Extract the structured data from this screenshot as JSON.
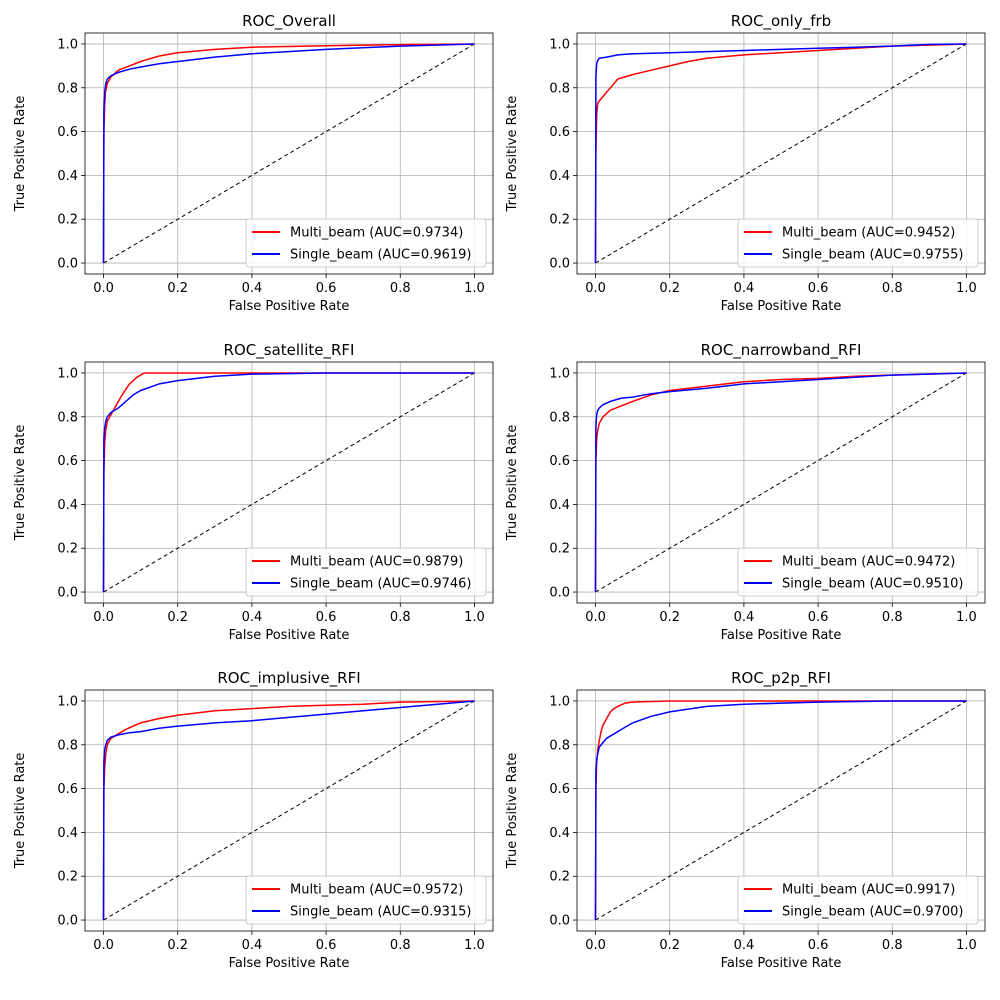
{
  "colors": {
    "Multi_beam": "#ff0000",
    "Single_beam": "#0000ff",
    "diagonal": "#000000"
  },
  "chart_data": [
    {
      "type": "line",
      "title": "ROC_Overall",
      "xlabel": "False Positive Rate",
      "ylabel": "True Positive Rate",
      "xlim": [
        -0.05,
        1.05
      ],
      "ylim": [
        -0.05,
        1.05
      ],
      "xticks": [
        "0.0",
        "0.2",
        "0.4",
        "0.6",
        "0.8",
        "1.0"
      ],
      "yticks": [
        "0.0",
        "0.2",
        "0.4",
        "0.6",
        "0.8",
        "1.0"
      ],
      "grid": true,
      "legend_position": "lower-right",
      "series": [
        {
          "name": "Multi_beam",
          "legend": "Multi_beam (AUC=0.9734)",
          "x": [
            0,
            0.001,
            0.003,
            0.005,
            0.01,
            0.02,
            0.04,
            0.07,
            0.1,
            0.15,
            0.2,
            0.3,
            0.4,
            0.6,
            0.8,
            1.0
          ],
          "y": [
            0,
            0.6,
            0.72,
            0.78,
            0.82,
            0.85,
            0.88,
            0.9,
            0.92,
            0.945,
            0.96,
            0.975,
            0.985,
            0.992,
            0.997,
            1.0
          ]
        },
        {
          "name": "Single_beam",
          "legend": "Single_beam (AUC=0.9619)",
          "x": [
            0,
            0.001,
            0.003,
            0.006,
            0.01,
            0.02,
            0.04,
            0.07,
            0.1,
            0.15,
            0.2,
            0.3,
            0.4,
            0.6,
            0.8,
            1.0
          ],
          "y": [
            0,
            0.7,
            0.78,
            0.82,
            0.84,
            0.855,
            0.87,
            0.885,
            0.895,
            0.91,
            0.92,
            0.94,
            0.955,
            0.975,
            0.99,
            1.0
          ]
        }
      ]
    },
    {
      "type": "line",
      "title": "ROC_only_frb",
      "xlabel": "False Positive Rate",
      "ylabel": "True Positive Rate",
      "xlim": [
        -0.05,
        1.05
      ],
      "ylim": [
        -0.05,
        1.05
      ],
      "xticks": [
        "0.0",
        "0.2",
        "0.4",
        "0.6",
        "0.8",
        "1.0"
      ],
      "yticks": [
        "0.0",
        "0.2",
        "0.4",
        "0.6",
        "0.8",
        "1.0"
      ],
      "grid": true,
      "legend_position": "lower-right",
      "series": [
        {
          "name": "Multi_beam",
          "legend": "Multi_beam (AUC=0.9452)",
          "x": [
            0,
            0.001,
            0.003,
            0.006,
            0.01,
            0.02,
            0.04,
            0.06,
            0.1,
            0.15,
            0.2,
            0.25,
            0.3,
            0.4,
            0.5,
            0.6,
            0.7,
            0.8,
            0.9,
            1.0
          ],
          "y": [
            0,
            0.5,
            0.68,
            0.73,
            0.74,
            0.76,
            0.8,
            0.84,
            0.86,
            0.88,
            0.9,
            0.92,
            0.935,
            0.95,
            0.96,
            0.97,
            0.98,
            0.99,
            0.995,
            1.0
          ]
        },
        {
          "name": "Single_beam",
          "legend": "Single_beam (AUC=0.9755)",
          "x": [
            0,
            0.001,
            0.003,
            0.006,
            0.01,
            0.03,
            0.06,
            0.1,
            0.2,
            0.3,
            0.4,
            0.5,
            0.6,
            0.7,
            0.8,
            0.9,
            1.0
          ],
          "y": [
            0,
            0.85,
            0.91,
            0.925,
            0.935,
            0.94,
            0.95,
            0.955,
            0.96,
            0.965,
            0.97,
            0.975,
            0.98,
            0.985,
            0.99,
            0.998,
            1.0
          ]
        }
      ]
    },
    {
      "type": "line",
      "title": "ROC_satellite_RFI",
      "xlabel": "False Positive Rate",
      "ylabel": "True Positive Rate",
      "xlim": [
        -0.05,
        1.05
      ],
      "ylim": [
        -0.05,
        1.05
      ],
      "xticks": [
        "0.0",
        "0.2",
        "0.4",
        "0.6",
        "0.8",
        "1.0"
      ],
      "yticks": [
        "0.0",
        "0.2",
        "0.4",
        "0.6",
        "0.8",
        "1.0"
      ],
      "grid": true,
      "legend_position": "lower-right",
      "series": [
        {
          "name": "Multi_beam",
          "legend": "Multi_beam (AUC=0.9879)",
          "x": [
            0,
            0.001,
            0.003,
            0.006,
            0.01,
            0.02,
            0.03,
            0.04,
            0.05,
            0.07,
            0.09,
            0.11,
            0.2,
            0.4,
            0.6,
            0.8,
            1.0
          ],
          "y": [
            0,
            0.55,
            0.68,
            0.74,
            0.78,
            0.81,
            0.84,
            0.87,
            0.9,
            0.95,
            0.98,
            1.0,
            1.0,
            1.0,
            1.0,
            1.0,
            1.0
          ]
        },
        {
          "name": "Single_beam",
          "legend": "Single_beam (AUC=0.9746)",
          "x": [
            0,
            0.001,
            0.003,
            0.006,
            0.01,
            0.02,
            0.04,
            0.06,
            0.08,
            0.1,
            0.15,
            0.2,
            0.3,
            0.4,
            0.6,
            0.8,
            1.0
          ],
          "y": [
            0,
            0.7,
            0.75,
            0.78,
            0.8,
            0.82,
            0.84,
            0.87,
            0.9,
            0.92,
            0.95,
            0.965,
            0.985,
            0.995,
            1.0,
            1.0,
            1.0
          ]
        }
      ]
    },
    {
      "type": "line",
      "title": "ROC_narrowband_RFI",
      "xlabel": "False Positive Rate",
      "ylabel": "True Positive Rate",
      "xlim": [
        -0.05,
        1.05
      ],
      "ylim": [
        -0.05,
        1.05
      ],
      "xticks": [
        "0.0",
        "0.2",
        "0.4",
        "0.6",
        "0.8",
        "1.0"
      ],
      "yticks": [
        "0.0",
        "0.2",
        "0.4",
        "0.6",
        "0.8",
        "1.0"
      ],
      "grid": true,
      "legend_position": "lower-right",
      "series": [
        {
          "name": "Multi_beam",
          "legend": "Multi_beam (AUC=0.9472)",
          "x": [
            0,
            0.001,
            0.003,
            0.006,
            0.01,
            0.02,
            0.04,
            0.07,
            0.1,
            0.15,
            0.2,
            0.3,
            0.4,
            0.5,
            0.6,
            0.7,
            0.8,
            1.0
          ],
          "y": [
            0,
            0.6,
            0.7,
            0.74,
            0.77,
            0.8,
            0.83,
            0.85,
            0.87,
            0.9,
            0.92,
            0.94,
            0.96,
            0.97,
            0.975,
            0.985,
            0.99,
            1.0
          ]
        },
        {
          "name": "Single_beam",
          "legend": "Single_beam (AUC=0.9510)",
          "x": [
            0,
            0.001,
            0.003,
            0.006,
            0.01,
            0.02,
            0.04,
            0.07,
            0.1,
            0.15,
            0.2,
            0.3,
            0.4,
            0.5,
            0.6,
            0.7,
            0.8,
            1.0
          ],
          "y": [
            0,
            0.76,
            0.81,
            0.83,
            0.84,
            0.855,
            0.87,
            0.885,
            0.89,
            0.905,
            0.915,
            0.93,
            0.95,
            0.96,
            0.97,
            0.98,
            0.99,
            1.0
          ]
        }
      ]
    },
    {
      "type": "line",
      "title": "ROC_implusive_RFI",
      "xlabel": "False Positive Rate",
      "ylabel": "True Positive Rate",
      "xlim": [
        -0.05,
        1.05
      ],
      "ylim": [
        -0.05,
        1.05
      ],
      "xticks": [
        "0.0",
        "0.2",
        "0.4",
        "0.6",
        "0.8",
        "1.0"
      ],
      "yticks": [
        "0.0",
        "0.2",
        "0.4",
        "0.6",
        "0.8",
        "1.0"
      ],
      "grid": true,
      "legend_position": "lower-right",
      "series": [
        {
          "name": "Multi_beam",
          "legend": "Multi_beam (AUC=0.9572)",
          "x": [
            0,
            0.001,
            0.003,
            0.006,
            0.01,
            0.02,
            0.04,
            0.06,
            0.08,
            0.1,
            0.15,
            0.2,
            0.3,
            0.4,
            0.5,
            0.6,
            0.7,
            0.8,
            1.0
          ],
          "y": [
            0,
            0.6,
            0.7,
            0.76,
            0.8,
            0.83,
            0.85,
            0.87,
            0.885,
            0.9,
            0.92,
            0.935,
            0.955,
            0.965,
            0.975,
            0.98,
            0.985,
            0.995,
            1.0
          ]
        },
        {
          "name": "Single_beam",
          "legend": "Single_beam (AUC=0.9315)",
          "x": [
            0,
            0.001,
            0.003,
            0.006,
            0.01,
            0.02,
            0.04,
            0.07,
            0.1,
            0.15,
            0.2,
            0.3,
            0.4,
            0.5,
            0.6,
            0.7,
            0.8,
            0.9,
            1.0
          ],
          "y": [
            0,
            0.72,
            0.78,
            0.8,
            0.82,
            0.835,
            0.845,
            0.855,
            0.86,
            0.875,
            0.885,
            0.9,
            0.91,
            0.925,
            0.94,
            0.955,
            0.97,
            0.985,
            1.0
          ]
        }
      ]
    },
    {
      "type": "line",
      "title": "ROC_p2p_RFI",
      "xlabel": "False Positive Rate",
      "ylabel": "True Positive Rate",
      "xlim": [
        -0.05,
        1.05
      ],
      "ylim": [
        -0.05,
        1.05
      ],
      "xticks": [
        "0.0",
        "0.2",
        "0.4",
        "0.6",
        "0.8",
        "1.0"
      ],
      "yticks": [
        "0.0",
        "0.2",
        "0.4",
        "0.6",
        "0.8",
        "1.0"
      ],
      "grid": true,
      "legend_position": "lower-right",
      "series": [
        {
          "name": "Multi_beam",
          "legend": "Multi_beam (AUC=0.9917)",
          "x": [
            0,
            0.001,
            0.003,
            0.006,
            0.01,
            0.015,
            0.02,
            0.03,
            0.04,
            0.05,
            0.06,
            0.08,
            0.1,
            0.2,
            0.4,
            0.6,
            0.8,
            1.0
          ],
          "y": [
            0,
            0.6,
            0.72,
            0.78,
            0.82,
            0.86,
            0.89,
            0.92,
            0.95,
            0.965,
            0.975,
            0.99,
            0.995,
            1.0,
            1.0,
            1.0,
            1.0,
            1.0
          ]
        },
        {
          "name": "Single_beam",
          "legend": "Single_beam (AUC=0.9700)",
          "x": [
            0,
            0.001,
            0.003,
            0.006,
            0.01,
            0.02,
            0.03,
            0.05,
            0.07,
            0.1,
            0.15,
            0.2,
            0.3,
            0.4,
            0.6,
            0.8,
            1.0
          ],
          "y": [
            0,
            0.68,
            0.73,
            0.76,
            0.79,
            0.81,
            0.83,
            0.85,
            0.87,
            0.9,
            0.93,
            0.95,
            0.975,
            0.985,
            0.995,
            1.0,
            1.0
          ]
        }
      ]
    }
  ]
}
